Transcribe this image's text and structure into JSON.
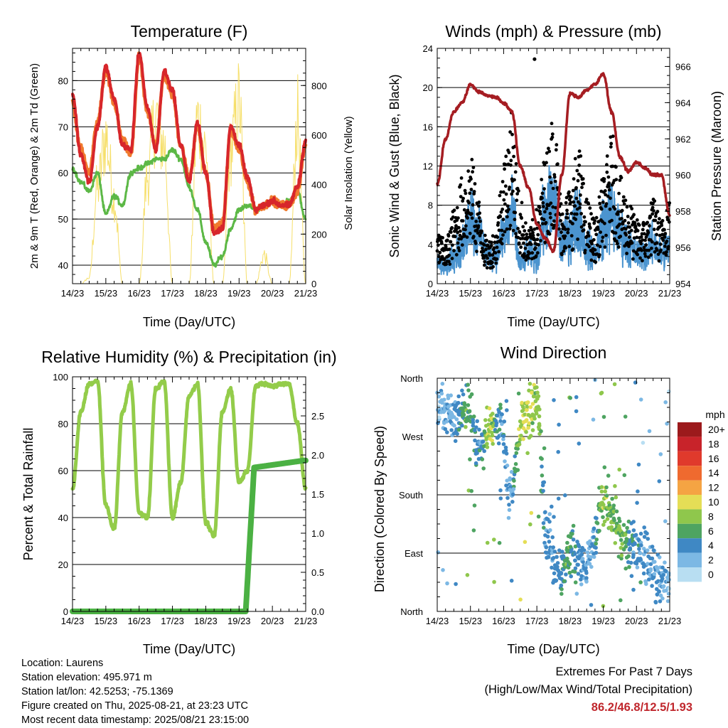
{
  "x_tick_labels": [
    "14/23",
    "15/23",
    "16/23",
    "17/23",
    "18/23",
    "19/23",
    "20/23",
    "21/23"
  ],
  "temperature_panel": {
    "title": "Temperature (F)",
    "xlabel": "Time (Day/UTC)",
    "ylabel_left": "2m & 9m T (Red, Orange) & 2m Td (Green)",
    "ylabel_right": "Solar Insolation (Yellow)",
    "left_ticks": [
      "40",
      "50",
      "60",
      "70",
      "80"
    ],
    "right_ticks": [
      "0",
      "200",
      "400",
      "600",
      "800"
    ]
  },
  "wind_panel": {
    "title": "Winds (mph) & Pressure (mb)",
    "xlabel": "Time (Day/UTC)",
    "ylabel_left": "Sonic Wind & Gust (Blue, Black)",
    "ylabel_right": "Station Pressure (Maroon)",
    "left_ticks": [
      "0",
      "4",
      "8",
      "12",
      "16",
      "20",
      "24"
    ],
    "right_ticks": [
      "954",
      "956",
      "958",
      "960",
      "962",
      "964",
      "966"
    ]
  },
  "rh_panel": {
    "title": "Relative Humidity (%) & Precipitation (in)",
    "xlabel": "Time (Day/UTC)",
    "ylabel_left": "Percent & Total Rainfall",
    "left_ticks": [
      "0",
      "20",
      "40",
      "60",
      "80",
      "100"
    ],
    "right_ticks": [
      "0.0",
      "0.5",
      "1.0",
      "1.5",
      "2.0",
      "2.5"
    ]
  },
  "direction_panel": {
    "title": "Wind Direction",
    "xlabel": "Time (Day/UTC)",
    "ylabel_left": "Direction (Colored By Speed)",
    "direction_ticks": [
      "North",
      "East",
      "South",
      "West",
      "North"
    ],
    "legend_title": "mph",
    "legend_labels": [
      "20+",
      "18",
      "16",
      "14",
      "12",
      "10",
      "8",
      "6",
      "4",
      "2",
      "0"
    ],
    "legend_colors": [
      "#9c1a1c",
      "#c8232a",
      "#e03a2c",
      "#ef6a2f",
      "#f5a443",
      "#e5de56",
      "#8fc74c",
      "#4ea461",
      "#3f88c4",
      "#7cb8e4",
      "#b8def2"
    ]
  },
  "station_info": {
    "location": "Location: Laurens",
    "elevation": "Station elevation: 495.971 m",
    "latlon": "Station lat/lon: 42.5253; -75.1369",
    "created": "Figure created on Thu, 2025-08-21, at 23:23 UTC",
    "recent": "Most recent data timestamp: 2025/08/21 23:15:00"
  },
  "extremes": {
    "line1": "Extremes For Past 7 Days",
    "line2": "(High/Low/Max Wind/Total Precipitation)",
    "values": "86.2/46.8/12.5/1.93"
  },
  "colors": {
    "temp_2m": "#d7262b",
    "temp_9m": "#f07a2e",
    "dewpoint": "#5cb846",
    "solar": "#f6df6a",
    "wind": "#4b94cf",
    "gust": "#000000",
    "pressure": "#a51d22",
    "rh": "#93cc4a",
    "precip": "#4bb143"
  },
  "chart_data": [
    {
      "type": "line",
      "title": "Temperature (F)",
      "xlabel": "Time (Day/UTC)",
      "ylabel": "2m & 9m T (Red, Orange) & 2m Td (Green)",
      "y2label": "Solar Insolation (Yellow)",
      "x": [
        0,
        0.25,
        0.5,
        0.75,
        1,
        1.25,
        1.5,
        1.75,
        2,
        2.25,
        2.5,
        2.75,
        3,
        3.25,
        3.5,
        3.75,
        4,
        4.25,
        4.5,
        4.75,
        5,
        5.25,
        5.5,
        5.75,
        6,
        6.25,
        6.5,
        6.75,
        7
      ],
      "ylim": [
        36,
        87
      ],
      "y2lim": [
        0,
        950
      ],
      "series": [
        {
          "name": "2m T",
          "axis": "left",
          "values": [
            77,
            64,
            58,
            70,
            83,
            76,
            66,
            65,
            86,
            74,
            65,
            82,
            78,
            66,
            58,
            71,
            60,
            47,
            48,
            70,
            66,
            59,
            52,
            53,
            54,
            53,
            53,
            57,
            67
          ]
        },
        {
          "name": "9m T",
          "axis": "left",
          "values": [
            75,
            65,
            60,
            71,
            82,
            75,
            67,
            64,
            85,
            73,
            66,
            81,
            77,
            66,
            59,
            70,
            60,
            48,
            49,
            69,
            65,
            58,
            52,
            53,
            54,
            53,
            53,
            56,
            66
          ]
        },
        {
          "name": "2m Td",
          "axis": "left",
          "values": [
            61,
            58,
            56,
            60,
            51,
            55,
            53,
            60,
            61,
            62,
            63,
            63,
            65,
            63,
            57,
            52,
            45,
            40,
            42,
            48,
            52,
            53,
            52,
            53,
            54,
            53,
            54,
            56,
            50
          ]
        },
        {
          "name": "Solar",
          "axis": "right",
          "values": [
            0,
            0,
            30,
            500,
            760,
            450,
            0,
            0,
            0,
            560,
            860,
            720,
            0,
            0,
            0,
            850,
            700,
            0,
            0,
            700,
            930,
            0,
            0,
            150,
            0,
            0,
            0,
            850,
            0
          ]
        }
      ]
    },
    {
      "type": "line",
      "title": "Winds (mph) & Pressure (mb)",
      "xlabel": "Time (Day/UTC)",
      "ylabel": "Sonic Wind & Gust (Blue, Black)",
      "y2label": "Station Pressure (Maroon)",
      "x": [
        0,
        0.25,
        0.5,
        0.75,
        1,
        1.25,
        1.5,
        1.75,
        2,
        2.25,
        2.5,
        2.75,
        3,
        3.25,
        3.5,
        3.75,
        4,
        4.25,
        4.5,
        4.75,
        5,
        5.25,
        5.5,
        5.75,
        6,
        6.25,
        6.5,
        6.75,
        7
      ],
      "ylim": [
        0,
        24
      ],
      "y2lim": [
        954,
        967
      ],
      "series": [
        {
          "name": "Sonic Wind",
          "axis": "left",
          "values": [
            2,
            1.5,
            3,
            3.5,
            7,
            5,
            3,
            3,
            5,
            7,
            2,
            3,
            2.5,
            7,
            8,
            4,
            5,
            7,
            3.5,
            3,
            6,
            7,
            5,
            4,
            3,
            3,
            4,
            3,
            4
          ]
        },
        {
          "name": "Gust",
          "axis": "left",
          "values": [
            5,
            4,
            7,
            10,
            12,
            8,
            4,
            5,
            12,
            16,
            8,
            5,
            7,
            12,
            16,
            8,
            9,
            13,
            8,
            6,
            10,
            14,
            10,
            8,
            6,
            6,
            8,
            6,
            9
          ]
        },
        {
          "name": "Pressure",
          "axis": "right",
          "values": [
            959.5,
            962,
            963.5,
            964,
            965,
            964.6,
            964.4,
            964.3,
            964,
            963.5,
            960.5,
            959.3,
            957.3,
            956.5,
            955.8,
            960,
            964.5,
            964.3,
            964.7,
            965,
            965.6,
            963.5,
            961,
            960.2,
            960.7,
            960.4,
            960,
            960,
            957.8
          ]
        }
      ]
    },
    {
      "type": "line",
      "title": "Relative Humidity (%) & Precipitation (in)",
      "xlabel": "Time (Day/UTC)",
      "ylabel": "Percent & Total Rainfall",
      "x": [
        0,
        0.25,
        0.5,
        0.75,
        1,
        1.25,
        1.5,
        1.75,
        2,
        2.25,
        2.5,
        2.75,
        3,
        3.25,
        3.5,
        3.75,
        4,
        4.25,
        4.5,
        4.75,
        5,
        5.25,
        5.5,
        5.75,
        6,
        6.25,
        6.5,
        6.75,
        7
      ],
      "ylim": [
        0,
        100
      ],
      "y2lim": [
        0,
        3
      ],
      "series": [
        {
          "name": "RH",
          "axis": "left",
          "values": [
            52,
            85,
            97,
            98,
            45,
            35,
            85,
            97,
            42,
            40,
            95,
            98,
            40,
            55,
            92,
            97,
            38,
            32,
            85,
            95,
            55,
            60,
            96,
            97,
            96,
            97,
            97,
            80,
            52
          ]
        },
        {
          "name": "Precip",
          "axis": "right",
          "values": [
            0,
            0,
            0,
            0,
            0,
            0,
            0,
            0,
            0,
            0,
            0,
            0,
            0,
            0,
            0,
            0,
            0,
            0,
            0,
            0,
            0,
            0,
            1.85,
            1.88,
            1.9,
            1.92,
            1.93,
            1.93,
            1.93
          ]
        }
      ]
    },
    {
      "type": "scatter",
      "title": "Wind Direction",
      "xlabel": "Time (Day/UTC)",
      "ylabel": "Direction (Colored By Speed)",
      "x": [
        0.2,
        0.9,
        1.6,
        2.1,
        2.6,
        3.0,
        3.5,
        4.2,
        4.6,
        5.1,
        5.4,
        5.8,
        6.5,
        6.9
      ],
      "y": [
        300,
        320,
        280,
        200,
        310,
        330,
        80,
        60,
        100,
        170,
        140,
        110,
        90,
        40
      ],
      "speed": [
        2,
        6,
        10,
        4,
        10,
        8,
        4,
        5,
        3,
        8,
        6,
        7,
        3,
        2
      ],
      "ylim": [
        0,
        360
      ]
    }
  ]
}
